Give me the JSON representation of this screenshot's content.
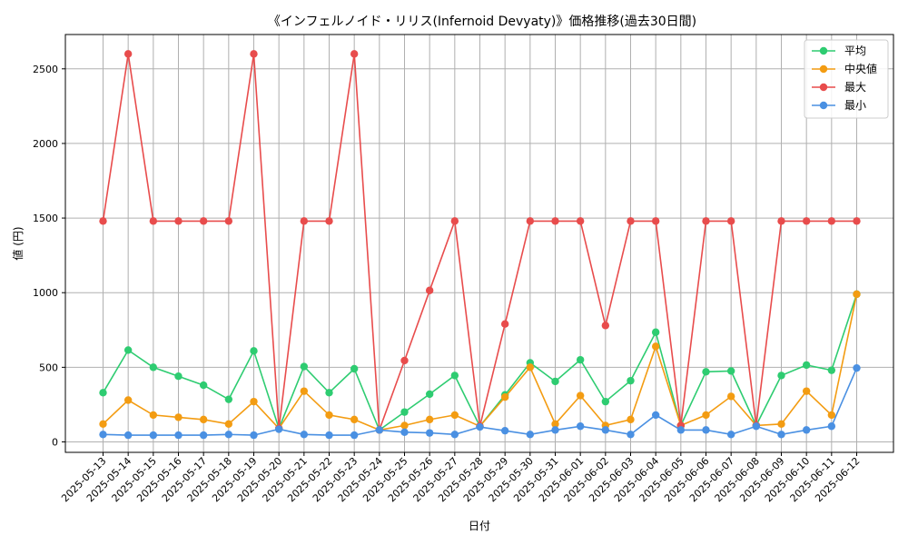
{
  "chart_data": {
    "type": "line",
    "title": "《インフェルノイド・リリス(Infernoid Devyaty)》価格推移(過去30日間)",
    "xlabel": "日付",
    "ylabel": "値 (円)",
    "ylim": [
      -70,
      2730
    ],
    "yticks": [
      0,
      500,
      1000,
      1500,
      2000,
      2500
    ],
    "grid": true,
    "legend_position": "top-right",
    "categories": [
      "2025-05-13",
      "2025-05-14",
      "2025-05-15",
      "2025-05-16",
      "2025-05-17",
      "2025-05-18",
      "2025-05-19",
      "2025-05-20",
      "2025-05-21",
      "2025-05-22",
      "2025-05-23",
      "2025-05-24",
      "2025-05-25",
      "2025-05-26",
      "2025-05-27",
      "2025-05-28",
      "2025-05-29",
      "2025-05-30",
      "2025-05-31",
      "2025-06-01",
      "2025-06-02",
      "2025-06-03",
      "2025-06-04",
      "2025-06-05",
      "2025-06-06",
      "2025-06-07",
      "2025-06-08",
      "2025-06-09",
      "2025-06-10",
      "2025-06-11",
      "2025-06-12"
    ],
    "series": [
      {
        "name": "平均",
        "color": "#2ecc71",
        "values": [
          330,
          615,
          500,
          440,
          380,
          285,
          610,
          90,
          505,
          330,
          490,
          80,
          200,
          320,
          445,
          105,
          315,
          530,
          405,
          550,
          270,
          410,
          735,
          110,
          470,
          475,
          110,
          445,
          515,
          480,
          990
        ]
      },
      {
        "name": "中央値",
        "color": "#f39c12",
        "values": [
          120,
          280,
          180,
          165,
          150,
          120,
          270,
          90,
          340,
          180,
          150,
          80,
          110,
          150,
          180,
          105,
          300,
          500,
          120,
          310,
          110,
          150,
          640,
          110,
          180,
          305,
          110,
          120,
          340,
          180,
          990
        ]
      },
      {
        "name": "最大",
        "color": "#e84c4c",
        "values": [
          1480,
          2600,
          1480,
          1480,
          1480,
          1480,
          2600,
          90,
          1480,
          1480,
          2600,
          80,
          545,
          1015,
          1480,
          105,
          790,
          1480,
          1480,
          1480,
          780,
          1480,
          1480,
          110,
          1480,
          1480,
          110,
          1480,
          1480,
          1480,
          1480
        ]
      },
      {
        "name": "最小",
        "color": "#4a90e2",
        "values": [
          50,
          45,
          45,
          45,
          45,
          50,
          45,
          85,
          50,
          45,
          45,
          80,
          65,
          60,
          50,
          100,
          75,
          50,
          80,
          105,
          80,
          50,
          180,
          80,
          80,
          50,
          105,
          50,
          80,
          105,
          495
        ]
      }
    ]
  }
}
